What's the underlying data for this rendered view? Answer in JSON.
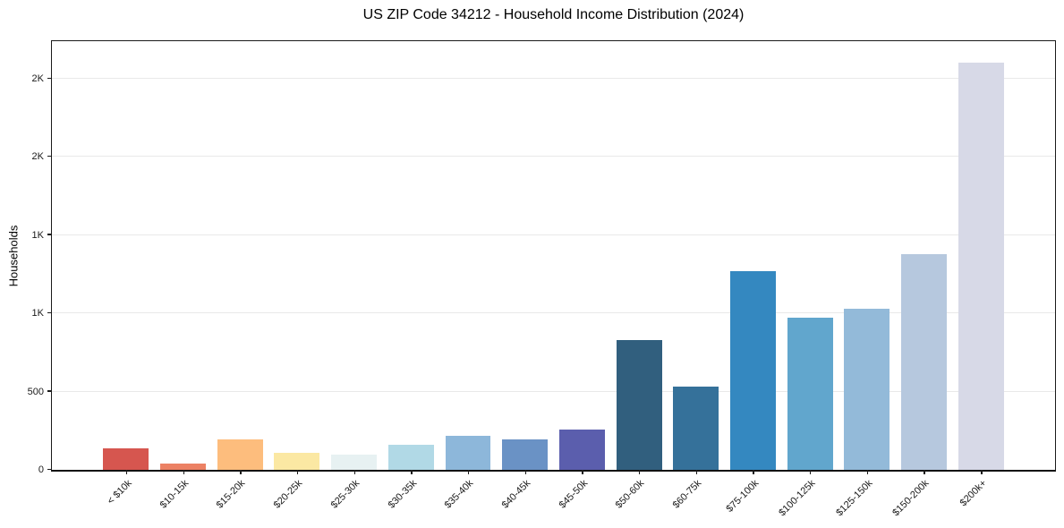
{
  "title": "US ZIP Code 34212 - Household Income Distribution (2024)",
  "chart_data": {
    "type": "bar",
    "title": "US ZIP Code 34212 - Household Income Distribution (2024)",
    "xlabel": "",
    "ylabel": "Households",
    "categories": [
      "< $10k",
      "$10-15k",
      "$15-20k",
      "$20-25k",
      "$25-30k",
      "$30-35k",
      "$35-40k",
      "$40-45k",
      "$45-50k",
      "$50-60k",
      "$60-75k",
      "$75-100k",
      "$100-125k",
      "$125-150k",
      "$150-200k",
      "$200k+"
    ],
    "values": [
      135,
      40,
      195,
      110,
      100,
      160,
      215,
      195,
      255,
      830,
      530,
      1270,
      975,
      1030,
      1380,
      2600
    ],
    "bar_colors": [
      "#d6564f",
      "#ec8164",
      "#fdbd7d",
      "#fbe8a3",
      "#e7f1f2",
      "#b1d9e6",
      "#8db7da",
      "#6a92c5",
      "#5b5ead",
      "#315f7e",
      "#35719a",
      "#3488c0",
      "#61a6cd",
      "#93bad9",
      "#b6c8de",
      "#d7d9e7"
    ],
    "ylim": [
      0,
      2740
    ],
    "yticks": [
      {
        "value": 0,
        "label": "0"
      },
      {
        "value": 500,
        "label": "500"
      },
      {
        "value": 1000,
        "label": "1K"
      },
      {
        "value": 1500,
        "label": "1K"
      },
      {
        "value": 2000,
        "label": "2K"
      },
      {
        "value": 2500,
        "label": "2K"
      }
    ],
    "grid": "horizontal",
    "legend": "none"
  },
  "colors": {
    "background": "#ffffff",
    "grid": "#e9e9e9",
    "spine": "#1a1a1a",
    "text": "#000000"
  }
}
